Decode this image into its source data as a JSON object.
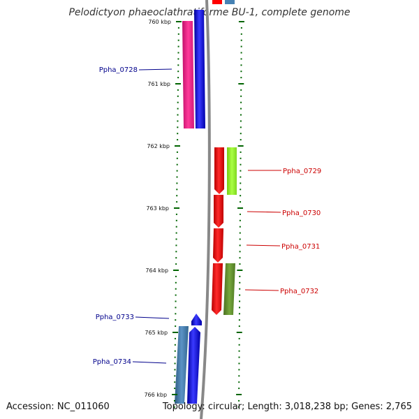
{
  "title": "Pelodictyon phaeoclathratiforme BU-1, complete genome",
  "accession_text": "Accession: NC_011060",
  "summary_text": "Topology: circular; Length: 3,018,238 bp; Genes: 2,765",
  "ruler": {
    "unit": "kbp",
    "ticks": [
      {
        "label": "760 kbp",
        "kbp": 760
      },
      {
        "label": "761 kbp",
        "kbp": 761
      },
      {
        "label": "762 kbp",
        "kbp": 762
      },
      {
        "label": "763 kbp",
        "kbp": 763
      },
      {
        "label": "764 kbp",
        "kbp": 764
      },
      {
        "label": "765 kbp",
        "kbp": 765
      },
      {
        "label": "766 kbp",
        "kbp": 766
      }
    ]
  },
  "genes": [
    {
      "label": "Ppha_0728",
      "strand": "minus",
      "label_color": "#00008b"
    },
    {
      "label": "Ppha_0729",
      "strand": "plus",
      "label_color": "#cc0000"
    },
    {
      "label": "Ppha_0730",
      "strand": "plus",
      "label_color": "#cc0000"
    },
    {
      "label": "Ppha_0731",
      "strand": "plus",
      "label_color": "#cc0000"
    },
    {
      "label": "Ppha_0732",
      "strand": "plus",
      "label_color": "#cc0000"
    },
    {
      "label": "Ppha_0733",
      "strand": "minus",
      "label_color": "#00008b"
    },
    {
      "label": "Ppha_0734",
      "strand": "minus",
      "label_color": "#00008b"
    }
  ],
  "colors": {
    "plus_strand_cds": "#ff0000",
    "minus_strand_cds": "#0000ff",
    "cog_pink": "#ff3399",
    "cog_lime": "#99ff33",
    "cog_olive": "#669933",
    "cog_steelblue": "#4682b4",
    "backbone": "#888888",
    "tick": "#006400"
  }
}
